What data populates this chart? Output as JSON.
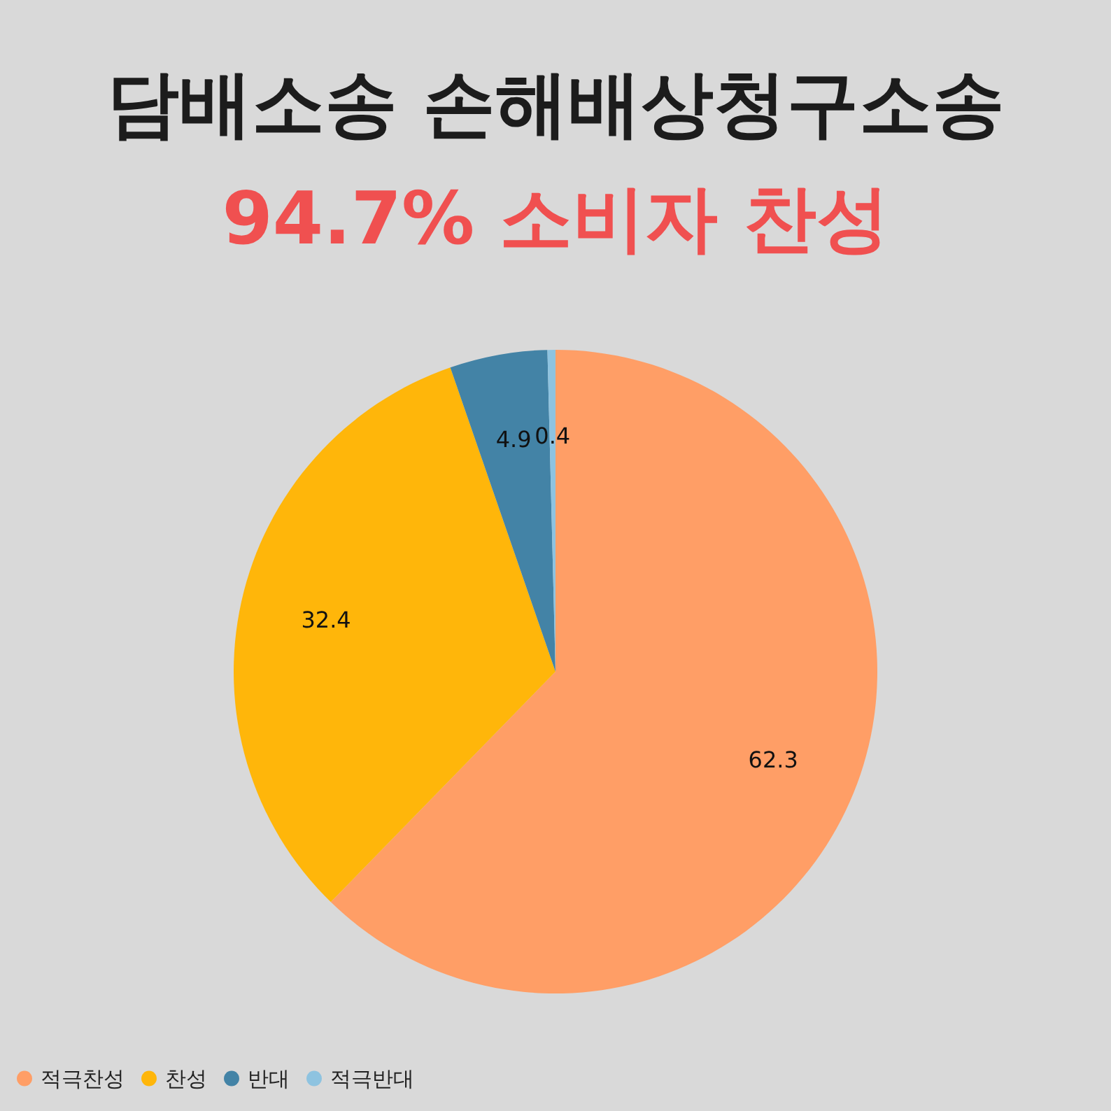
{
  "chart_data": {
    "type": "pie",
    "title": "담배소송 손해배상청구소송",
    "subtitle": "94.7% 소비자 찬성",
    "categories": [
      "적극찬성",
      "찬성",
      "반대",
      "적극반대"
    ],
    "values": [
      62.3,
      32.4,
      4.9,
      0.4
    ],
    "colors": [
      "#ff9e66",
      "#ffb60a",
      "#4383a6",
      "#8ec3e0"
    ],
    "data_labels": true,
    "legend": "bottom"
  }
}
